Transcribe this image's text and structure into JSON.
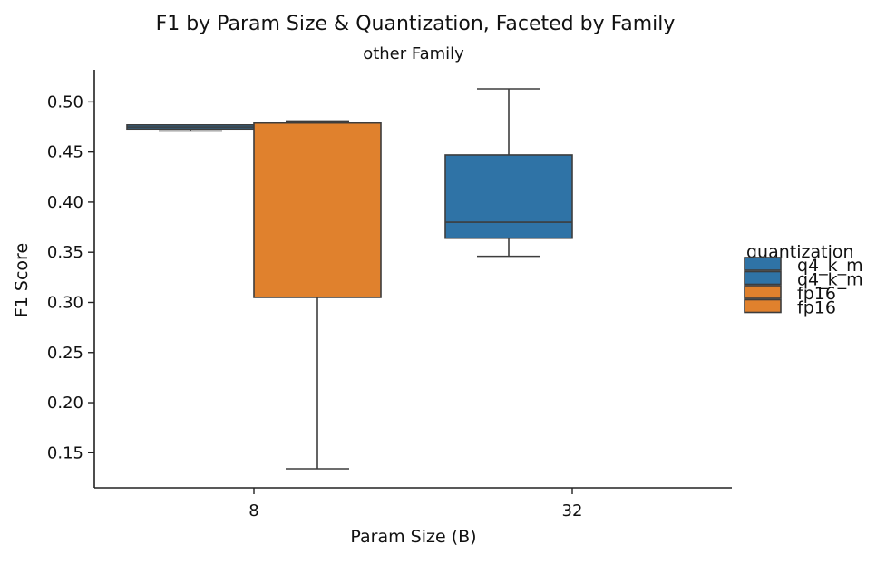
{
  "chart_data": {
    "type": "boxplot",
    "title": "F1 by Param Size & Quantization, Faceted by Family",
    "subtitle": "other Family",
    "xlabel": "Param Size (B)",
    "ylabel": "F1 Score",
    "categories": [
      "8",
      "32"
    ],
    "ylim": [
      0.115,
      0.532
    ],
    "yticks": [
      0.15,
      0.2,
      0.25,
      0.3,
      0.35,
      0.4,
      0.45,
      0.5
    ],
    "ytick_labels": [
      "0.15",
      "0.20",
      "0.25",
      "0.30",
      "0.35",
      "0.40",
      "0.45",
      "0.50"
    ],
    "grid": false,
    "legend": {
      "title": "quantization",
      "position": "right",
      "entries": [
        {
          "label": "q4_k_m",
          "color": "#2f73a6"
        },
        {
          "label": "q4_k_m",
          "color": "#2f73a6"
        },
        {
          "label": "fp16",
          "color": "#e0812d"
        },
        {
          "label": "fp16",
          "color": "#e0812d"
        }
      ]
    },
    "series": [
      {
        "name": "q4_k_m",
        "color": "#2f73a6",
        "boxes": [
          {
            "category": "8",
            "whisker_low": 0.471,
            "q1": 0.473,
            "median": 0.475,
            "q3": 0.477,
            "whisker_high": 0.477
          },
          {
            "category": "32",
            "whisker_low": 0.346,
            "q1": 0.364,
            "median": 0.38,
            "q3": 0.447,
            "whisker_high": 0.513
          }
        ]
      },
      {
        "name": "fp16",
        "color": "#e0812d",
        "boxes": [
          {
            "category": "8",
            "whisker_low": 0.134,
            "q1": 0.305,
            "median": 0.479,
            "q3": 0.479,
            "whisker_high": 0.481
          }
        ]
      }
    ]
  }
}
